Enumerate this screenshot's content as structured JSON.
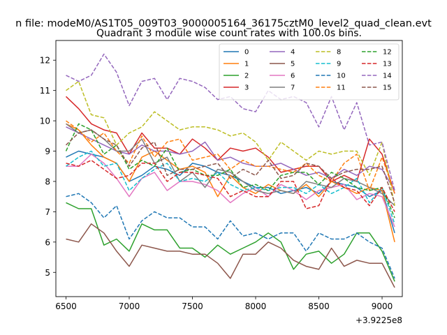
{
  "chart_data": {
    "type": "line",
    "suptitle": "n file: modeM0/AS1T05_009T03_9000005164_36175cztM0_level2_quad_clean.evt",
    "title": "Quadrant 3 module wise count rates with 100.0s bins.",
    "xlabel": "",
    "ylabel": "",
    "x_offset_label": "+3.9225e8",
    "xlim": [
      6420,
      9160
    ],
    "ylim": [
      4.2,
      12.65
    ],
    "xticks": [
      6500,
      7000,
      7500,
      8000,
      8500,
      9000
    ],
    "yticks": [
      5,
      6,
      7,
      8,
      9,
      10,
      11,
      12
    ],
    "grid": false,
    "legend_position": "top-right",
    "x": [
      6500,
      6600,
      6700,
      6800,
      6900,
      7000,
      7100,
      7200,
      7300,
      7400,
      7500,
      7600,
      7700,
      7800,
      7900,
      8000,
      8100,
      8200,
      8300,
      8400,
      8500,
      8600,
      8700,
      8800,
      8900,
      9000,
      9100
    ],
    "series": [
      {
        "name": "0",
        "color": "#1f77b4",
        "dash": "solid",
        "values": [
          8.8,
          9.0,
          8.9,
          8.8,
          8.6,
          8.0,
          8.2,
          8.5,
          8.4,
          8.2,
          8.6,
          8.5,
          8.3,
          8.2,
          8.0,
          7.8,
          7.8,
          7.6,
          7.7,
          7.8,
          7.6,
          8.0,
          7.9,
          7.8,
          7.5,
          7.7,
          6.3
        ]
      },
      {
        "name": "1",
        "color": "#ff7f0e",
        "dash": "solid",
        "values": [
          9.9,
          9.7,
          9.2,
          8.8,
          8.6,
          8.0,
          8.8,
          9.0,
          8.7,
          8.4,
          8.5,
          8.3,
          7.5,
          8.2,
          7.8,
          7.6,
          7.9,
          7.7,
          7.6,
          7.9,
          7.5,
          8.0,
          7.8,
          7.6,
          7.8,
          7.7,
          6.0
        ]
      },
      {
        "name": "2",
        "color": "#2ca02c",
        "dash": "solid",
        "values": [
          7.3,
          7.1,
          7.1,
          5.9,
          6.1,
          5.7,
          6.6,
          6.4,
          6.4,
          5.8,
          5.8,
          5.5,
          5.9,
          5.6,
          5.8,
          6.0,
          6.3,
          6.0,
          5.1,
          5.6,
          5.7,
          5.3,
          5.6,
          6.3,
          6.3,
          5.7,
          4.7
        ]
      },
      {
        "name": "3",
        "color": "#d62728",
        "dash": "solid",
        "values": [
          10.8,
          10.4,
          9.9,
          9.7,
          9.6,
          8.9,
          9.6,
          9.1,
          9.1,
          8.9,
          9.4,
          9.1,
          8.7,
          9.1,
          9.0,
          9.1,
          8.8,
          8.3,
          8.4,
          8.5,
          8.5,
          8.0,
          8.2,
          8.0,
          9.4,
          8.9,
          7.6
        ]
      },
      {
        "name": "4",
        "color": "#9467bd",
        "dash": "solid",
        "values": [
          9.8,
          9.6,
          9.4,
          9.2,
          9.0,
          8.9,
          9.2,
          9.0,
          9.0,
          8.9,
          9.0,
          9.3,
          8.7,
          8.8,
          8.6,
          8.5,
          8.5,
          8.6,
          8.4,
          8.2,
          8.3,
          8.1,
          8.4,
          8.2,
          8.5,
          8.4,
          7.7
        ]
      },
      {
        "name": "5",
        "color": "#8c564b",
        "dash": "solid",
        "values": [
          6.1,
          6.0,
          6.6,
          6.3,
          5.7,
          5.2,
          5.9,
          5.8,
          5.7,
          5.7,
          5.6,
          5.6,
          5.3,
          4.8,
          5.6,
          5.6,
          6.0,
          5.8,
          5.4,
          5.2,
          5.1,
          5.8,
          5.2,
          5.4,
          5.3,
          5.3,
          4.5
        ]
      },
      {
        "name": "6",
        "color": "#e377c2",
        "dash": "solid",
        "values": [
          8.5,
          8.5,
          8.9,
          8.6,
          8.1,
          7.5,
          8.1,
          8.3,
          7.7,
          8.0,
          8.0,
          7.9,
          7.7,
          7.3,
          7.6,
          7.8,
          7.5,
          7.9,
          7.7,
          7.4,
          7.7,
          7.8,
          7.9,
          7.4,
          7.6,
          7.5,
          6.5
        ]
      },
      {
        "name": "7",
        "color": "#7f7f7f",
        "dash": "solid",
        "values": [
          9.9,
          9.6,
          9.7,
          9.4,
          9.0,
          9.0,
          9.4,
          8.6,
          8.8,
          8.0,
          8.3,
          7.8,
          8.4,
          8.3,
          8.0,
          7.7,
          7.6,
          7.7,
          7.6,
          8.0,
          7.9,
          7.8,
          8.1,
          8.0,
          7.8,
          7.6,
          7.2
        ]
      },
      {
        "name": "8",
        "color": "#bcbd22",
        "dash": "dashed",
        "values": [
          11.0,
          11.3,
          10.2,
          10.1,
          9.2,
          9.6,
          9.8,
          10.3,
          10.0,
          9.7,
          9.8,
          9.8,
          9.7,
          9.5,
          9.6,
          9.3,
          8.7,
          9.3,
          9.0,
          8.7,
          9.0,
          8.9,
          9.0,
          9.0,
          8.2,
          9.3,
          7.2
        ]
      },
      {
        "name": "9",
        "color": "#17becf",
        "dash": "dashed",
        "values": [
          8.5,
          8.8,
          9.0,
          8.5,
          8.6,
          7.7,
          8.1,
          8.4,
          8.6,
          8.0,
          8.1,
          8.0,
          8.3,
          7.9,
          7.7,
          7.8,
          7.7,
          7.8,
          7.8,
          7.6,
          7.9,
          7.6,
          7.8,
          8.1,
          7.3,
          7.8,
          6.6
        ]
      },
      {
        "name": "10",
        "color": "#1f77b4",
        "dash": "dashed",
        "values": [
          7.5,
          7.6,
          7.3,
          6.8,
          7.2,
          6.1,
          6.7,
          7.0,
          6.8,
          6.8,
          6.5,
          6.5,
          6.1,
          6.7,
          6.2,
          6.3,
          6.1,
          6.3,
          6.3,
          5.7,
          6.3,
          6.1,
          6.1,
          6.3,
          6.0,
          5.8,
          4.8
        ]
      },
      {
        "name": "11",
        "color": "#ff7f0e",
        "dash": "dashed",
        "values": [
          10.0,
          9.7,
          9.3,
          9.6,
          9.0,
          8.6,
          9.5,
          8.8,
          9.3,
          9.4,
          8.7,
          8.8,
          8.9,
          8.4,
          8.7,
          8.5,
          8.5,
          8.4,
          8.3,
          8.6,
          8.2,
          8.0,
          8.6,
          8.9,
          7.7,
          8.8,
          7.6
        ]
      },
      {
        "name": "12",
        "color": "#2ca02c",
        "dash": "dashed",
        "values": [
          9.0,
          9.9,
          9.7,
          8.9,
          9.2,
          8.4,
          8.7,
          8.5,
          9.1,
          8.3,
          8.4,
          8.2,
          8.2,
          8.4,
          7.8,
          7.9,
          7.7,
          8.2,
          8.3,
          8.3,
          7.9,
          8.3,
          8.1,
          7.8,
          7.7,
          7.8,
          6.8
        ]
      },
      {
        "name": "13",
        "color": "#d62728",
        "dash": "dashed",
        "values": [
          8.6,
          8.5,
          8.7,
          8.4,
          8.1,
          8.2,
          8.6,
          8.6,
          8.0,
          8.3,
          8.3,
          8.2,
          8.1,
          7.5,
          7.7,
          7.5,
          7.5,
          8.0,
          8.0,
          7.1,
          7.2,
          8.1,
          7.8,
          7.7,
          7.2,
          7.8,
          7.0
        ]
      },
      {
        "name": "14",
        "color": "#9467bd",
        "dash": "dashed",
        "values": [
          11.5,
          11.3,
          11.5,
          12.2,
          11.6,
          10.5,
          11.3,
          11.4,
          10.7,
          11.4,
          11.3,
          11.1,
          10.7,
          10.8,
          10.4,
          10.3,
          11.0,
          10.7,
          10.8,
          10.6,
          9.8,
          10.8,
          9.7,
          10.6,
          9.2,
          9.3,
          7.7
        ]
      },
      {
        "name": "15",
        "color": "#8c564b",
        "dash": "dashed",
        "values": [
          9.2,
          9.6,
          9.7,
          9.4,
          9.2,
          8.5,
          9.1,
          9.3,
          8.2,
          8.4,
          8.4,
          8.5,
          8.6,
          8.1,
          8.4,
          8.2,
          8.7,
          8.1,
          8.2,
          8.6,
          8.5,
          8.1,
          8.3,
          8.4,
          8.4,
          8.5,
          7.3
        ]
      }
    ]
  }
}
